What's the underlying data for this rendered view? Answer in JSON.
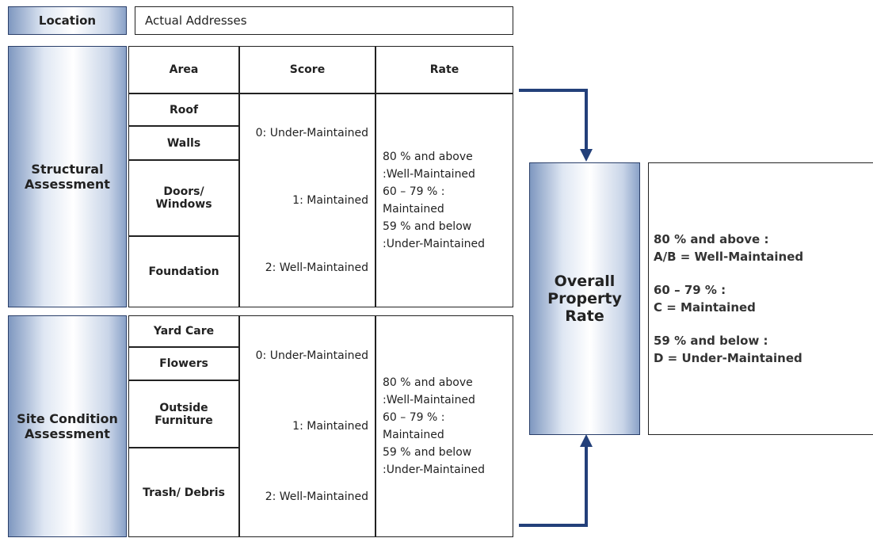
{
  "location": {
    "label": "Location",
    "value": "Actual Addresses"
  },
  "headers": [
    "Area",
    "Score",
    "Rate"
  ],
  "assessments": [
    {
      "label": "Structural Assessment",
      "areas": [
        "Roof",
        "Walls",
        "Doors/ Windows",
        "Foundation"
      ],
      "scores": [
        "0: Under-Maintained",
        "1: Maintained",
        "2: Well-Maintained"
      ],
      "rates": [
        "80 % and above :Well-Maintained",
        "60 – 79 % : Maintained",
        "59 % and below :Under-Maintained"
      ]
    },
    {
      "label": "Site Condition Assessment",
      "areas": [
        "Yard Care",
        "Flowers",
        "Outside Furniture",
        "Trash/ Debris"
      ],
      "scores": [
        "0: Under-Maintained",
        "1: Maintained",
        "2: Well-Maintained"
      ],
      "rates": [
        "80 % and above :Well-Maintained",
        "60 – 79 % : Maintained",
        "59 % and below :Under-Maintained"
      ]
    }
  ],
  "overall": {
    "label": "Overall Property Rate",
    "rates": [
      [
        "80 % and above :",
        "A/B = Well-Maintained"
      ],
      [
        "60 – 79 % :",
        "C = Maintained"
      ],
      [
        "59 % and below :",
        "D = Under-Maintained"
      ]
    ]
  }
}
